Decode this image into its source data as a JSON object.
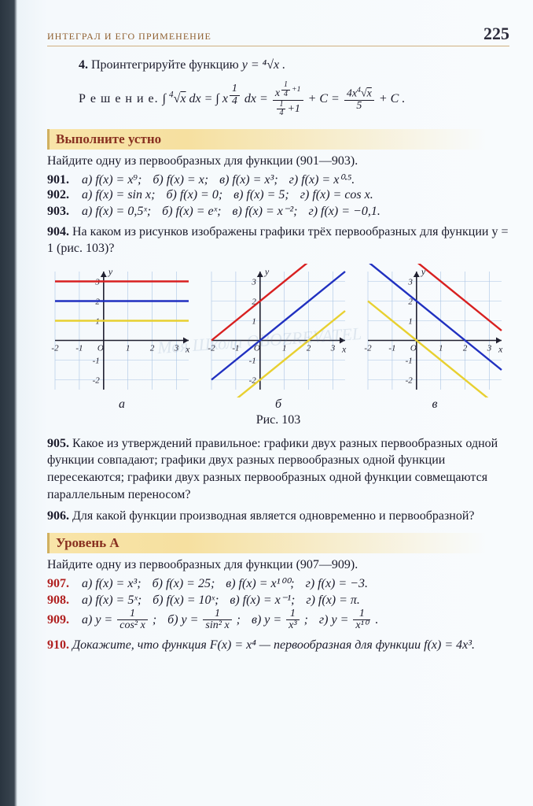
{
  "header": {
    "chapter": "ИНТЕГРАЛ И ЕГО ПРИМЕНЕНИЕ",
    "page": "225"
  },
  "watermark": "Моя Школа   OBOZREVATEL",
  "task4": {
    "num": "4.",
    "text": "Проинтегрируйте функцию",
    "func": "y = ⁴√x ."
  },
  "solution": {
    "label": "Р е ш е н и е.",
    "formula": "∫ ⁴√x dx = ∫ x^{1/4} dx = x^{1/4+1}/(1/4+1) + C = 4x⁴√x / 5 + C ."
  },
  "banner_oral": "Выполните устно",
  "oral": {
    "intro": "Найдите одну из первообразных для функции (901—903).",
    "ex901": {
      "num": "901.",
      "a": "а) f(x) = x⁹;",
      "b": "б) f(x) = x;",
      "v": "в) f(x) = x³;",
      "g": "г) f(x) = x⁰·⁵."
    },
    "ex902": {
      "num": "902.",
      "a": "а) f(x) = sin x;",
      "b": "б) f(x) = 0;",
      "v": "в) f(x) = 5;",
      "g": "г) f(x) = cos x."
    },
    "ex903": {
      "num": "903.",
      "a": "а) f(x) = 0,5ˣ;",
      "b": "б) f(x) = eˣ;",
      "v": "в) f(x) = x⁻²;",
      "g": "г) f(x) = −0,1."
    },
    "ex904": {
      "num": "904.",
      "text": "На каком из рисунков изображены графики трёх первообразных для функции y = 1 (рис. 103)?"
    }
  },
  "charts": {
    "x_axis_label": "x",
    "y_axis_label": "y",
    "xlim": [
      -2,
      3.5
    ],
    "ylim": [
      -2.5,
      3.5
    ],
    "xtick": [
      -2,
      -1,
      1,
      2,
      3
    ],
    "ytick": [
      -2,
      -1,
      1,
      2,
      3
    ],
    "axis_color": "#202030",
    "grid_color": "#aac4e4",
    "tick_fontsize": 11,
    "a": {
      "label": "а",
      "lines": [
        {
          "y": 3,
          "color": "#d82020",
          "type": "hline"
        },
        {
          "y": 2,
          "color": "#2030c0",
          "type": "hline"
        },
        {
          "y": 1,
          "color": "#e8d030",
          "type": "hline"
        }
      ]
    },
    "b": {
      "label": "б",
      "lines": [
        {
          "slope": 1,
          "intercept": 2,
          "color": "#d82020"
        },
        {
          "slope": 1,
          "intercept": 0,
          "color": "#2030c0"
        },
        {
          "slope": 1,
          "intercept": -2,
          "color": "#e8d030"
        }
      ]
    },
    "v": {
      "label": "в",
      "lines": [
        {
          "slope": -1,
          "intercept": 4,
          "color": "#d82020"
        },
        {
          "slope": -1,
          "intercept": 2,
          "color": "#2030c0"
        },
        {
          "slope": -1,
          "intercept": 0,
          "color": "#e8d030"
        }
      ]
    },
    "caption": "Рис. 103"
  },
  "ex905": {
    "num": "905.",
    "text": "Какое из утверждений правильное: графики двух разных первообразных одной функции совпадают; графики двух разных первообразных одной функции пересекаются; графики двух разных первообразных одной функции совмещаются параллельным переносом?"
  },
  "ex906": {
    "num": "906.",
    "text": "Для какой функции производная является одновременно и первообразной?"
  },
  "banner_A": "Уровень А",
  "levelA": {
    "intro": "Найдите одну из первообразных для функции (907—909).",
    "ex907": {
      "num": "907.",
      "a": "а) f(x) = x³;",
      "b": "б) f(x) = 25;",
      "v": "в) f(x) = x¹⁰⁰;",
      "g": "г) f(x) = −3."
    },
    "ex908": {
      "num": "908.",
      "a": "а) f(x) = 5ˣ;",
      "b": "б) f(x) = 10ˣ;",
      "v": "в) f(x) = x⁻¹;",
      "g": "г) f(x) = π."
    },
    "ex909": {
      "num": "909.",
      "a_pre": "а) y =",
      "a_top": "1",
      "a_bot": "cos² x",
      "a_post": ";",
      "b_pre": "б) y =",
      "b_top": "1",
      "b_bot": "sin² x",
      "b_post": ";",
      "v_pre": "в) y =",
      "v_top": "1",
      "v_bot": "x³",
      "v_post": ";",
      "g_pre": "г) y =",
      "g_top": "1",
      "g_bot": "x¹⁰",
      "g_post": "."
    },
    "ex910": {
      "num": "910.",
      "text": "Докажите, что функция F(x) = x⁴ — первообразная для функции f(x) = 4x³."
    }
  }
}
